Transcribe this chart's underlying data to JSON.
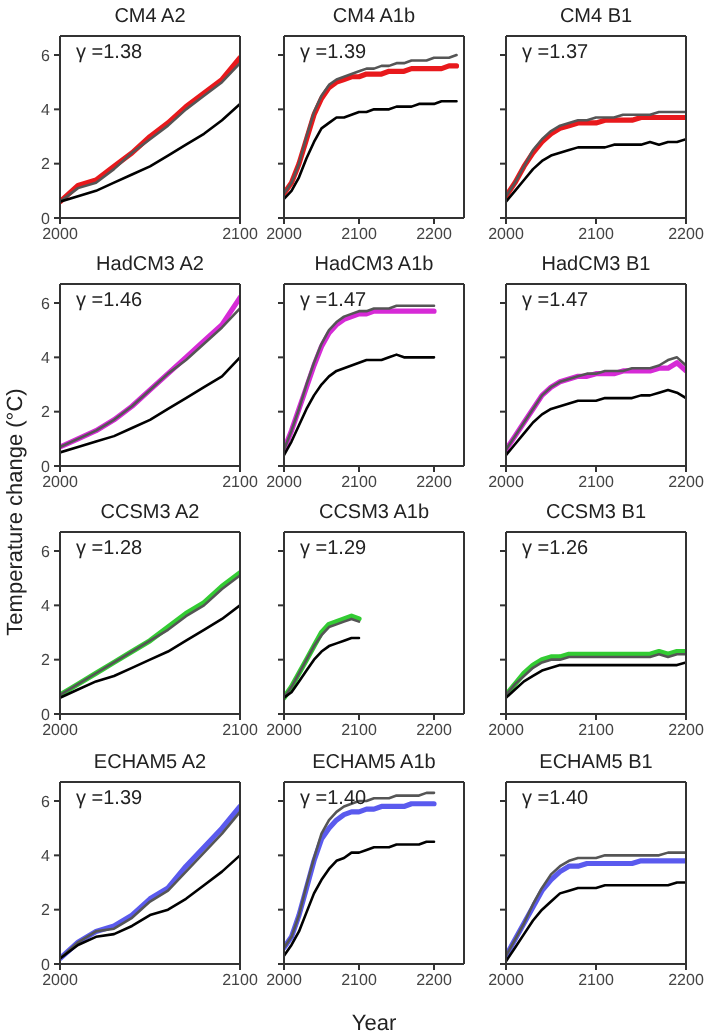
{
  "chart_data": [
    {
      "type": "line",
      "title": "CM4 A2",
      "annotations": [
        "γ =1.38"
      ],
      "x": [
        2000,
        2010,
        2020,
        2030,
        2040,
        2050,
        2060,
        2070,
        2080,
        2090,
        2100
      ],
      "xlim": [
        2000,
        2100
      ],
      "xticks": [
        2000,
        2100
      ],
      "ylim": [
        0,
        6.7
      ],
      "yticks": [
        0,
        2,
        4,
        6
      ],
      "series": [
        {
          "color": "#e8191c",
          "values": [
            0.6,
            1.2,
            1.4,
            1.9,
            2.4,
            3.0,
            3.5,
            4.1,
            4.6,
            5.1,
            5.9
          ]
        },
        {
          "color": "#555555",
          "values": [
            0.6,
            1.1,
            1.3,
            1.8,
            2.4,
            2.9,
            3.4,
            4.0,
            4.5,
            5.0,
            5.7
          ]
        },
        {
          "color": "#000000",
          "values": [
            0.6,
            0.8,
            1.0,
            1.3,
            1.6,
            1.9,
            2.3,
            2.7,
            3.1,
            3.6,
            4.2
          ]
        }
      ]
    },
    {
      "type": "line",
      "title": "CM4 A1b",
      "annotations": [
        "γ =1.39"
      ],
      "tick_labels": "x",
      "x": [
        2000,
        2010,
        2020,
        2030,
        2040,
        2050,
        2060,
        2070,
        2080,
        2090,
        2100,
        2110,
        2120,
        2130,
        2140,
        2150,
        2160,
        2170,
        2180,
        2190,
        2200,
        2210,
        2220,
        2230
      ],
      "xlim": [
        2000,
        2240
      ],
      "xticks": [
        2000,
        2100,
        2200
      ],
      "ylim": [
        0,
        6.7
      ],
      "yticks": [
        0,
        2,
        4,
        6
      ],
      "series": [
        {
          "color": "#e8191c",
          "values": [
            0.9,
            1.3,
            2.0,
            2.9,
            3.8,
            4.4,
            4.8,
            5.0,
            5.1,
            5.2,
            5.2,
            5.3,
            5.3,
            5.3,
            5.4,
            5.4,
            5.4,
            5.5,
            5.5,
            5.5,
            5.5,
            5.5,
            5.6,
            5.6
          ]
        },
        {
          "color": "#555555",
          "values": [
            0.9,
            1.3,
            2.0,
            3.0,
            3.9,
            4.5,
            4.9,
            5.1,
            5.2,
            5.3,
            5.4,
            5.5,
            5.5,
            5.6,
            5.6,
            5.7,
            5.7,
            5.8,
            5.8,
            5.8,
            5.9,
            5.9,
            5.9,
            6.0
          ]
        },
        {
          "color": "#000000",
          "values": [
            0.7,
            1.0,
            1.5,
            2.2,
            2.8,
            3.3,
            3.5,
            3.7,
            3.7,
            3.8,
            3.9,
            3.9,
            4.0,
            4.0,
            4.0,
            4.1,
            4.1,
            4.1,
            4.2,
            4.2,
            4.2,
            4.3,
            4.3,
            4.3
          ]
        }
      ]
    },
    {
      "type": "line",
      "title": "CM4 B1",
      "annotations": [
        "γ =1.37"
      ],
      "tick_labels": "x",
      "x": [
        2000,
        2010,
        2020,
        2030,
        2040,
        2050,
        2060,
        2070,
        2080,
        2090,
        2100,
        2110,
        2120,
        2130,
        2140,
        2150,
        2160,
        2170,
        2180,
        2190,
        2200
      ],
      "xlim": [
        2000,
        2200
      ],
      "xticks": [
        2000,
        2100,
        2200
      ],
      "ylim": [
        0,
        6.7
      ],
      "yticks": [
        0,
        2,
        4,
        6
      ],
      "series": [
        {
          "color": "#e8191c",
          "values": [
            0.8,
            1.3,
            1.9,
            2.4,
            2.8,
            3.1,
            3.3,
            3.4,
            3.5,
            3.5,
            3.5,
            3.6,
            3.6,
            3.6,
            3.6,
            3.7,
            3.7,
            3.7,
            3.7,
            3.7,
            3.7
          ]
        },
        {
          "color": "#555555",
          "values": [
            0.8,
            1.3,
            1.9,
            2.5,
            2.9,
            3.2,
            3.4,
            3.5,
            3.6,
            3.6,
            3.7,
            3.7,
            3.7,
            3.8,
            3.8,
            3.8,
            3.8,
            3.9,
            3.9,
            3.9,
            3.9
          ]
        },
        {
          "color": "#000000",
          "values": [
            0.6,
            1.0,
            1.4,
            1.8,
            2.1,
            2.3,
            2.4,
            2.5,
            2.6,
            2.6,
            2.6,
            2.6,
            2.7,
            2.7,
            2.7,
            2.7,
            2.8,
            2.7,
            2.8,
            2.8,
            2.9
          ]
        }
      ]
    },
    {
      "type": "line",
      "title": "HadCM3 A2",
      "ylabel": "Temperature change (°C)",
      "annotations": [
        "γ =1.46"
      ],
      "x": [
        2000,
        2010,
        2020,
        2030,
        2040,
        2050,
        2060,
        2070,
        2080,
        2090,
        2100
      ],
      "xlim": [
        2000,
        2100
      ],
      "xticks": [
        2000,
        2100
      ],
      "ylim": [
        0,
        6.7
      ],
      "yticks": [
        0,
        2,
        4,
        6
      ],
      "series": [
        {
          "color": "#d62ad6",
          "values": [
            0.7,
            1.0,
            1.3,
            1.7,
            2.2,
            2.8,
            3.4,
            4.0,
            4.6,
            5.2,
            6.2
          ]
        },
        {
          "color": "#555555",
          "values": [
            0.7,
            1.0,
            1.3,
            1.7,
            2.2,
            2.8,
            3.4,
            3.9,
            4.5,
            5.1,
            5.8
          ]
        },
        {
          "color": "#000000",
          "values": [
            0.5,
            0.7,
            0.9,
            1.1,
            1.4,
            1.7,
            2.1,
            2.5,
            2.9,
            3.3,
            4.0
          ]
        }
      ]
    },
    {
      "type": "line",
      "title": "HadCM3 A1b",
      "annotations": [
        "γ =1.47"
      ],
      "tick_labels": "x",
      "x": [
        2000,
        2010,
        2020,
        2030,
        2040,
        2050,
        2060,
        2070,
        2080,
        2090,
        2100,
        2110,
        2120,
        2130,
        2140,
        2150,
        2160,
        2170,
        2180,
        2190,
        2200
      ],
      "xlim": [
        2000,
        2240
      ],
      "xticks": [
        2000,
        2100,
        2200
      ],
      "ylim": [
        0,
        6.7
      ],
      "yticks": [
        0,
        2,
        4,
        6
      ],
      "series": [
        {
          "color": "#d62ad6",
          "values": [
            0.6,
            1.3,
            2.1,
            2.9,
            3.7,
            4.4,
            4.9,
            5.2,
            5.4,
            5.5,
            5.6,
            5.6,
            5.7,
            5.7,
            5.7,
            5.7,
            5.7,
            5.7,
            5.7,
            5.7,
            5.7
          ]
        },
        {
          "color": "#555555",
          "values": [
            0.6,
            1.3,
            2.1,
            3.0,
            3.8,
            4.5,
            5.0,
            5.3,
            5.5,
            5.6,
            5.7,
            5.7,
            5.8,
            5.8,
            5.8,
            5.9,
            5.9,
            5.9,
            5.9,
            5.9,
            5.9
          ]
        },
        {
          "color": "#000000",
          "values": [
            0.4,
            0.9,
            1.5,
            2.1,
            2.6,
            3.0,
            3.3,
            3.5,
            3.6,
            3.7,
            3.8,
            3.9,
            3.9,
            3.9,
            4.0,
            4.1,
            4.0,
            4.0,
            4.0,
            4.0,
            4.0
          ]
        }
      ]
    },
    {
      "type": "line",
      "title": "HadCM3 B1",
      "annotations": [
        "γ =1.47"
      ],
      "tick_labels": "x",
      "x": [
        2000,
        2010,
        2020,
        2030,
        2040,
        2050,
        2060,
        2070,
        2080,
        2090,
        2100,
        2110,
        2120,
        2130,
        2140,
        2150,
        2160,
        2170,
        2180,
        2190,
        2200
      ],
      "xlim": [
        2000,
        2200
      ],
      "xticks": [
        2000,
        2100,
        2200
      ],
      "ylim": [
        0,
        6.7
      ],
      "yticks": [
        0,
        2,
        4,
        6
      ],
      "series": [
        {
          "color": "#d62ad6",
          "values": [
            0.6,
            1.1,
            1.6,
            2.1,
            2.6,
            2.9,
            3.1,
            3.2,
            3.3,
            3.3,
            3.4,
            3.4,
            3.4,
            3.5,
            3.5,
            3.5,
            3.5,
            3.6,
            3.6,
            3.8,
            3.5
          ]
        },
        {
          "color": "#555555",
          "values": [
            0.6,
            1.1,
            1.6,
            2.1,
            2.6,
            2.9,
            3.1,
            3.2,
            3.3,
            3.4,
            3.4,
            3.5,
            3.5,
            3.5,
            3.6,
            3.6,
            3.6,
            3.7,
            3.9,
            4.0,
            3.7
          ]
        },
        {
          "color": "#000000",
          "values": [
            0.4,
            0.8,
            1.2,
            1.6,
            1.9,
            2.1,
            2.2,
            2.3,
            2.4,
            2.4,
            2.4,
            2.5,
            2.5,
            2.5,
            2.5,
            2.6,
            2.6,
            2.7,
            2.8,
            2.7,
            2.5
          ]
        }
      ]
    },
    {
      "type": "line",
      "title": "CCSM3 A2",
      "annotations": [
        "γ =1.28"
      ],
      "x": [
        2000,
        2010,
        2020,
        2030,
        2040,
        2050,
        2060,
        2070,
        2080,
        2090,
        2100
      ],
      "xlim": [
        2000,
        2100
      ],
      "xticks": [
        2000,
        2100
      ],
      "ylim": [
        0,
        6.7
      ],
      "yticks": [
        0,
        2,
        4,
        6
      ],
      "series": [
        {
          "color": "#33cc33",
          "values": [
            0.7,
            1.1,
            1.5,
            1.9,
            2.3,
            2.7,
            3.2,
            3.7,
            4.1,
            4.7,
            5.2
          ]
        },
        {
          "color": "#555555",
          "values": [
            0.7,
            1.1,
            1.5,
            1.9,
            2.3,
            2.7,
            3.1,
            3.6,
            4.0,
            4.6,
            5.1
          ]
        },
        {
          "color": "#000000",
          "values": [
            0.6,
            0.9,
            1.2,
            1.4,
            1.7,
            2.0,
            2.3,
            2.7,
            3.1,
            3.5,
            4.0
          ]
        }
      ]
    },
    {
      "type": "line",
      "title": "CCSM3 A1b",
      "annotations": [
        "γ =1.29"
      ],
      "tick_labels": "x",
      "x": [
        2000,
        2010,
        2020,
        2030,
        2040,
        2050,
        2060,
        2070,
        2080,
        2090,
        2100
      ],
      "xlim": [
        2000,
        2240
      ],
      "xticks": [
        2000,
        2100,
        2200
      ],
      "ylim": [
        0,
        6.7
      ],
      "yticks": [
        0,
        2,
        4,
        6
      ],
      "series": [
        {
          "color": "#33cc33",
          "values": [
            0.6,
            1.0,
            1.5,
            2.0,
            2.5,
            3.0,
            3.3,
            3.4,
            3.5,
            3.6,
            3.5
          ]
        },
        {
          "color": "#555555",
          "values": [
            0.6,
            1.0,
            1.5,
            2.0,
            2.5,
            2.9,
            3.2,
            3.3,
            3.4,
            3.5,
            3.4
          ]
        },
        {
          "color": "#000000",
          "values": [
            0.6,
            0.8,
            1.2,
            1.6,
            2.0,
            2.3,
            2.5,
            2.6,
            2.7,
            2.8,
            2.8
          ]
        }
      ]
    },
    {
      "type": "line",
      "title": "CCSM3 B1",
      "annotations": [
        "γ =1.26"
      ],
      "tick_labels": "x",
      "x": [
        2000,
        2010,
        2020,
        2030,
        2040,
        2050,
        2060,
        2070,
        2080,
        2090,
        2100,
        2110,
        2120,
        2130,
        2140,
        2150,
        2160,
        2170,
        2180,
        2190,
        2200
      ],
      "xlim": [
        2000,
        2200
      ],
      "xticks": [
        2000,
        2100,
        2200
      ],
      "ylim": [
        0,
        6.7
      ],
      "yticks": [
        0,
        2,
        4,
        6
      ],
      "series": [
        {
          "color": "#33cc33",
          "values": [
            0.7,
            1.1,
            1.5,
            1.8,
            2.0,
            2.1,
            2.1,
            2.2,
            2.2,
            2.2,
            2.2,
            2.2,
            2.2,
            2.2,
            2.2,
            2.2,
            2.2,
            2.3,
            2.2,
            2.3,
            2.3
          ]
        },
        {
          "color": "#555555",
          "values": [
            0.7,
            1.1,
            1.4,
            1.7,
            1.9,
            2.0,
            2.0,
            2.1,
            2.1,
            2.1,
            2.1,
            2.1,
            2.1,
            2.1,
            2.1,
            2.1,
            2.1,
            2.2,
            2.1,
            2.2,
            2.2
          ]
        },
        {
          "color": "#000000",
          "values": [
            0.6,
            0.9,
            1.2,
            1.4,
            1.6,
            1.7,
            1.8,
            1.8,
            1.8,
            1.8,
            1.8,
            1.8,
            1.8,
            1.8,
            1.8,
            1.8,
            1.8,
            1.8,
            1.8,
            1.8,
            1.9
          ]
        }
      ]
    },
    {
      "type": "line",
      "title": "ECHAM5 A2",
      "annotations": [
        "γ =1.39"
      ],
      "x": [
        2000,
        2010,
        2020,
        2030,
        2040,
        2050,
        2060,
        2070,
        2080,
        2090,
        2100
      ],
      "xlim": [
        2000,
        2100
      ],
      "xticks": [
        2000,
        2100
      ],
      "ylim": [
        0,
        6.7
      ],
      "yticks": [
        0,
        2,
        4,
        6
      ],
      "series": [
        {
          "color": "#5a5aee",
          "values": [
            0.2,
            0.8,
            1.2,
            1.4,
            1.8,
            2.4,
            2.8,
            3.6,
            4.3,
            5.0,
            5.8
          ]
        },
        {
          "color": "#555555",
          "values": [
            0.2,
            0.8,
            1.2,
            1.3,
            1.7,
            2.3,
            2.7,
            3.4,
            4.1,
            4.8,
            5.6
          ]
        },
        {
          "color": "#000000",
          "values": [
            0.2,
            0.7,
            1.0,
            1.1,
            1.4,
            1.8,
            2.0,
            2.4,
            2.9,
            3.4,
            4.0
          ]
        }
      ]
    },
    {
      "type": "line",
      "title": "ECHAM5 A1b",
      "xlabel": "Year",
      "annotations": [
        "γ =1.40"
      ],
      "tick_labels": "x",
      "x": [
        2000,
        2010,
        2020,
        2030,
        2040,
        2050,
        2060,
        2070,
        2080,
        2090,
        2100,
        2110,
        2120,
        2130,
        2140,
        2150,
        2160,
        2170,
        2180,
        2190,
        2200
      ],
      "xlim": [
        2000,
        2240
      ],
      "xticks": [
        2000,
        2100,
        2200
      ],
      "ylim": [
        0,
        6.7
      ],
      "yticks": [
        0,
        2,
        4,
        6
      ],
      "series": [
        {
          "color": "#5a5aee",
          "values": [
            0.6,
            1.0,
            1.8,
            2.8,
            3.8,
            4.6,
            5.0,
            5.3,
            5.5,
            5.6,
            5.6,
            5.7,
            5.7,
            5.8,
            5.8,
            5.8,
            5.8,
            5.9,
            5.9,
            5.9,
            5.9
          ]
        },
        {
          "color": "#555555",
          "values": [
            0.6,
            1.0,
            1.8,
            2.9,
            3.9,
            4.8,
            5.3,
            5.6,
            5.8,
            5.9,
            6.0,
            6.0,
            6.1,
            6.1,
            6.1,
            6.2,
            6.2,
            6.2,
            6.2,
            6.3,
            6.3
          ]
        },
        {
          "color": "#000000",
          "values": [
            0.3,
            0.7,
            1.2,
            1.9,
            2.6,
            3.1,
            3.5,
            3.8,
            3.9,
            4.1,
            4.1,
            4.2,
            4.3,
            4.3,
            4.3,
            4.4,
            4.4,
            4.4,
            4.4,
            4.5,
            4.5
          ]
        }
      ]
    },
    {
      "type": "line",
      "title": "ECHAM5 B1",
      "annotations": [
        "γ =1.40"
      ],
      "tick_labels": "x",
      "x": [
        2000,
        2010,
        2020,
        2030,
        2040,
        2050,
        2060,
        2070,
        2080,
        2090,
        2100,
        2110,
        2120,
        2130,
        2140,
        2150,
        2160,
        2170,
        2180,
        2190,
        2200
      ],
      "xlim": [
        2000,
        2200
      ],
      "xticks": [
        2000,
        2100,
        2200
      ],
      "ylim": [
        0,
        6.7
      ],
      "yticks": [
        0,
        2,
        4,
        6
      ],
      "series": [
        {
          "color": "#5a5aee",
          "values": [
            0.3,
            0.9,
            1.5,
            2.1,
            2.7,
            3.1,
            3.4,
            3.6,
            3.6,
            3.7,
            3.7,
            3.7,
            3.7,
            3.7,
            3.7,
            3.8,
            3.8,
            3.8,
            3.8,
            3.8,
            3.8
          ]
        },
        {
          "color": "#555555",
          "values": [
            0.3,
            0.9,
            1.5,
            2.2,
            2.8,
            3.3,
            3.6,
            3.8,
            3.9,
            3.9,
            3.9,
            4.0,
            4.0,
            4.0,
            4.0,
            4.0,
            4.0,
            4.0,
            4.1,
            4.1,
            4.1
          ]
        },
        {
          "color": "#000000",
          "values": [
            0.1,
            0.6,
            1.1,
            1.6,
            2.0,
            2.3,
            2.6,
            2.7,
            2.8,
            2.8,
            2.8,
            2.9,
            2.9,
            2.9,
            2.9,
            2.9,
            2.9,
            2.9,
            2.9,
            3.0,
            3.0
          ]
        }
      ]
    }
  ]
}
